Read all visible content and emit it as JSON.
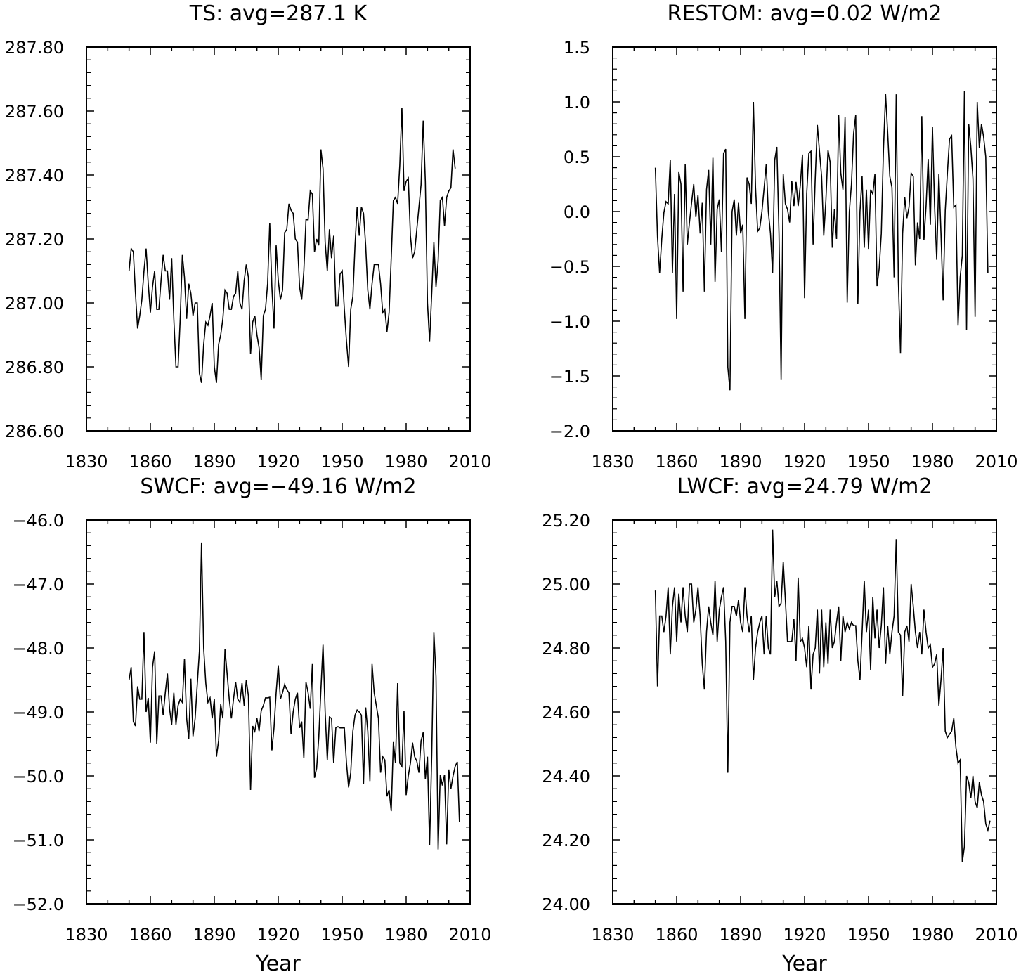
{
  "chart_data": [
    {
      "type": "line",
      "title": "TS: avg=287.1 K",
      "xlabel": "",
      "ylabel": "",
      "xlim": [
        1830,
        2010
      ],
      "ylim": [
        286.6,
        287.8
      ],
      "xticks": [
        1830,
        1860,
        1890,
        1920,
        1950,
        1980,
        2010
      ],
      "ytick_labels": [
        "287.80",
        "287.60",
        "287.40",
        "287.20",
        "287.00",
        "286.80",
        "286.60"
      ],
      "x_start": 1850,
      "series": [
        {
          "values": [
            287.1,
            287.17,
            287.16,
            287.03,
            286.92,
            286.96,
            287.01,
            287.1,
            287.17,
            287.06,
            286.97,
            287.05,
            287.1,
            286.98,
            286.98,
            287.07,
            287.15,
            287.1,
            287.1,
            287.01,
            287.14,
            286.95,
            286.8,
            286.8,
            286.95,
            287.15,
            287.08,
            286.95,
            287.06,
            287.03,
            286.96,
            287.0,
            287.0,
            286.78,
            286.75,
            286.87,
            286.94,
            286.93,
            286.96,
            287.0,
            286.8,
            286.75,
            286.87,
            286.9,
            286.95,
            287.04,
            287.03,
            286.98,
            286.98,
            287.02,
            287.03,
            287.1,
            287.0,
            286.98,
            287.07,
            287.12,
            287.08,
            286.84,
            286.94,
            286.96,
            286.9,
            286.86,
            286.76,
            286.96,
            286.98,
            287.06,
            287.25,
            287.05,
            286.92,
            287.18,
            287.07,
            287.01,
            287.04,
            287.22,
            287.23,
            287.31,
            287.29,
            287.28,
            287.2,
            287.19,
            287.05,
            287.01,
            287.1,
            287.26,
            287.26,
            287.35,
            287.34,
            287.16,
            287.2,
            287.18,
            287.48,
            287.42,
            287.19,
            287.1,
            287.23,
            287.14,
            287.21,
            286.99,
            286.99,
            287.09,
            287.1,
            286.98,
            286.88,
            286.8,
            286.98,
            287.02,
            287.18,
            287.3,
            287.21,
            287.3,
            287.28,
            287.18,
            287.04,
            286.98,
            287.06,
            287.12,
            287.12,
            287.12,
            287.06,
            286.97,
            286.98,
            286.91,
            286.97,
            287.14,
            287.32,
            287.33,
            287.31,
            287.43,
            287.61,
            287.35,
            287.38,
            287.39,
            287.21,
            287.14,
            287.16,
            287.23,
            287.3,
            287.37,
            287.57,
            287.38,
            287.0,
            286.88,
            287.03,
            287.19,
            287.05,
            287.13,
            287.32,
            287.33,
            287.24,
            287.33,
            287.35,
            287.36,
            287.48,
            287.42
          ]
        }
      ]
    },
    {
      "type": "line",
      "title": "RESTOM: avg=0.02 W/m2",
      "xlabel": "",
      "ylabel": "",
      "xlim": [
        1830,
        2010
      ],
      "ylim": [
        -2.0,
        1.5
      ],
      "xticks": [
        1830,
        1860,
        1890,
        1920,
        1950,
        1980,
        2010
      ],
      "ytick_labels": [
        "1.5",
        "1.0",
        "0.5",
        "0.0",
        "−0.5",
        "−1.0",
        "−1.5",
        "−2.0"
      ],
      "x_start": 1850,
      "series": [
        {
          "values": [
            0.4,
            -0.23,
            -0.56,
            -0.25,
            -0.01,
            0.09,
            0.07,
            0.47,
            -0.56,
            0.16,
            -0.98,
            0.36,
            0.25,
            -0.73,
            0.43,
            -0.3,
            -0.1,
            0.08,
            0.25,
            -0.05,
            0.15,
            -0.2,
            0.08,
            -0.73,
            0.2,
            0.38,
            -0.3,
            0.49,
            -0.64,
            0.02,
            0.11,
            -0.37,
            0.53,
            0.57,
            -1.42,
            -1.63,
            0.0,
            0.11,
            -0.22,
            0.08,
            -0.2,
            -0.12,
            -0.98,
            0.31,
            0.25,
            0.07,
            1.0,
            0.22,
            -0.18,
            -0.15,
            0.0,
            0.21,
            0.43,
            0.0,
            -0.2,
            -0.56,
            0.47,
            0.59,
            -0.2,
            -1.53,
            0.34,
            0.07,
            0.02,
            -0.1,
            0.28,
            0.05,
            0.27,
            0.05,
            0.24,
            0.52,
            -0.79,
            0.16,
            0.53,
            0.55,
            -0.3,
            0.3,
            0.79,
            0.55,
            0.32,
            -0.22,
            0.1,
            0.56,
            0.45,
            -0.33,
            0.02,
            -0.25,
            0.88,
            0.35,
            0.2,
            0.86,
            -0.83,
            0.0,
            0.25,
            0.71,
            0.88,
            -0.84,
            0.0,
            0.32,
            -0.33,
            0.2,
            -0.34,
            0.2,
            0.16,
            0.34,
            -0.68,
            -0.52,
            -0.2,
            0.56,
            1.07,
            0.72,
            0.32,
            0.22,
            -0.6,
            1.07,
            -0.63,
            -1.29,
            -0.2,
            0.13,
            -0.06,
            0.04,
            0.35,
            0.32,
            -0.49,
            -0.1,
            -0.25,
            0.87,
            -0.26,
            0.05,
            0.48,
            -0.12,
            0.77,
            0.05,
            -0.44,
            0.34,
            -0.2,
            -0.81,
            0.01,
            0.35,
            0.66,
            0.69,
            0.04,
            0.06,
            -1.04,
            -0.6,
            -0.4,
            1.1,
            -1.08,
            0.8,
            0.59,
            0.3,
            -0.96,
            1.0,
            0.58,
            0.8,
            0.68,
            0.5,
            -0.56
          ]
        }
      ]
    },
    {
      "type": "line",
      "title": "SWCF: avg=−49.16 W/m2",
      "xlabel": "Year",
      "ylabel": "",
      "xlim": [
        1830,
        2010
      ],
      "ylim": [
        -52.0,
        -46.0
      ],
      "xticks": [
        1830,
        1860,
        1890,
        1920,
        1950,
        1980,
        2010
      ],
      "ytick_labels": [
        "−46.0",
        "−47.0",
        "−48.0",
        "−49.0",
        "−50.0",
        "−51.0",
        "−52.0"
      ],
      "x_start": 1850,
      "series": [
        {
          "values": [
            -48.5,
            -48.3,
            -49.15,
            -49.22,
            -48.6,
            -48.8,
            -48.8,
            -47.75,
            -49.0,
            -48.78,
            -49.48,
            -48.3,
            -48.05,
            -49.5,
            -48.75,
            -48.75,
            -49.05,
            -48.7,
            -48.4,
            -48.95,
            -49.2,
            -48.7,
            -49.2,
            -48.9,
            -48.8,
            -48.85,
            -48.17,
            -49.1,
            -49.42,
            -48.48,
            -49.38,
            -49.1,
            -48.57,
            -48.05,
            -46.35,
            -48.0,
            -48.55,
            -48.85,
            -48.78,
            -49.1,
            -48.8,
            -49.7,
            -49.45,
            -48.88,
            -49.1,
            -48.02,
            -48.4,
            -48.8,
            -49.1,
            -48.8,
            -48.53,
            -48.8,
            -48.85,
            -48.55,
            -48.9,
            -48.5,
            -48.75,
            -50.22,
            -49.22,
            -49.3,
            -49.1,
            -49.3,
            -48.98,
            -48.9,
            -48.78,
            -48.78,
            -48.77,
            -49.6,
            -49.25,
            -48.7,
            -48.27,
            -48.8,
            -48.7,
            -48.57,
            -48.65,
            -48.7,
            -49.35,
            -49.0,
            -48.8,
            -48.7,
            -49.25,
            -49.15,
            -49.72,
            -48.53,
            -48.7,
            -48.95,
            -48.25,
            -50.03,
            -49.88,
            -49.4,
            -48.65,
            -47.95,
            -49.0,
            -49.75,
            -49.08,
            -49.1,
            -49.8,
            -49.25,
            -49.23,
            -49.25,
            -49.25,
            -49.25,
            -49.8,
            -50.18,
            -49.95,
            -49.3,
            -49.05,
            -48.97,
            -49.0,
            -49.05,
            -50.12,
            -48.93,
            -49.3,
            -50.08,
            -48.25,
            -48.7,
            -48.9,
            -49.1,
            -49.95,
            -49.7,
            -49.75,
            -50.32,
            -50.22,
            -50.55,
            -49.47,
            -49.8,
            -48.55,
            -49.8,
            -49.85,
            -48.98,
            -50.3,
            -50.0,
            -49.8,
            -49.48,
            -49.7,
            -49.77,
            -49.95,
            -49.45,
            -49.32,
            -50.05,
            -49.7,
            -51.08,
            -49.68,
            -47.75,
            -48.45,
            -51.15,
            -49.98,
            -50.15,
            -49.98,
            -51.07,
            -49.9,
            -50.2,
            -50.0,
            -49.85,
            -49.78,
            -50.72
          ]
        }
      ]
    },
    {
      "type": "line",
      "title": "LWCF: avg=24.79 W/m2",
      "xlabel": "Year",
      "ylabel": "",
      "xlim": [
        1830,
        2010
      ],
      "ylim": [
        24.0,
        25.2
      ],
      "xticks": [
        1830,
        1860,
        1890,
        1920,
        1950,
        1980,
        2010
      ],
      "ytick_labels": [
        "25.20",
        "25.00",
        "24.80",
        "24.60",
        "24.40",
        "24.20",
        "24.00"
      ],
      "x_start": 1850,
      "series": [
        {
          "values": [
            24.98,
            24.68,
            24.9,
            24.9,
            24.85,
            24.9,
            24.99,
            24.78,
            24.93,
            24.99,
            24.82,
            24.97,
            24.88,
            24.99,
            24.9,
            24.85,
            25.0,
            25.0,
            24.88,
            24.92,
            24.99,
            24.9,
            24.75,
            24.67,
            24.85,
            24.93,
            24.88,
            24.84,
            25.01,
            24.82,
            24.92,
            24.96,
            24.99,
            24.82,
            24.41,
            24.88,
            24.93,
            24.93,
            24.9,
            24.95,
            24.88,
            24.85,
            24.99,
            24.9,
            24.85,
            24.9,
            24.7,
            24.8,
            24.85,
            24.88,
            24.9,
            24.78,
            24.9,
            24.8,
            24.78,
            25.17,
            24.96,
            25.01,
            24.93,
            24.94,
            25.07,
            24.95,
            24.82,
            24.82,
            24.82,
            24.89,
            24.76,
            25.02,
            24.82,
            24.83,
            24.8,
            24.74,
            24.87,
            24.67,
            24.78,
            24.8,
            24.92,
            24.72,
            24.92,
            24.74,
            24.88,
            24.75,
            24.92,
            24.8,
            24.82,
            24.88,
            24.93,
            24.76,
            24.9,
            24.85,
            24.88,
            24.86,
            24.88,
            24.87,
            24.87,
            24.76,
            24.7,
            24.85,
            25.01,
            24.85,
            24.92,
            24.73,
            24.96,
            24.83,
            24.92,
            24.8,
            24.87,
            24.99,
            24.75,
            24.87,
            24.78,
            24.85,
            24.9,
            25.14,
            24.85,
            24.84,
            24.65,
            24.85,
            24.87,
            24.82,
            25.0,
            24.93,
            24.85,
            24.8,
            24.85,
            24.78,
            24.92,
            24.85,
            24.8,
            24.81,
            24.74,
            24.75,
            24.78,
            24.62,
            24.7,
            24.8,
            24.54,
            24.52,
            24.53,
            24.54,
            24.58,
            24.49,
            24.44,
            24.45,
            24.13,
            24.18,
            24.4,
            24.38,
            24.33,
            24.4,
            24.32,
            24.3,
            24.38,
            24.34,
            24.32,
            24.25,
            24.23,
            24.26
          ]
        }
      ]
    }
  ]
}
